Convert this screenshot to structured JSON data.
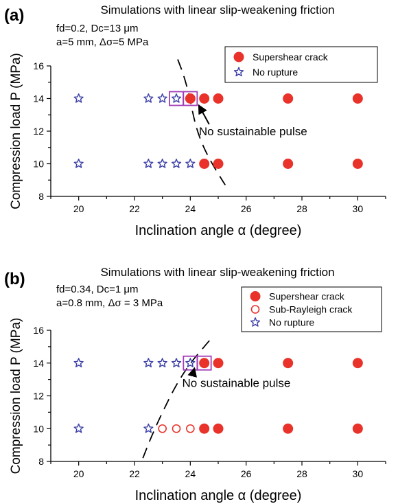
{
  "chart_data": [
    {
      "panel_label": "(a)",
      "type": "scatter",
      "title": "Simulations with linear slip-weakening friction",
      "params": [
        "fd=0.2, Dc=13 μm",
        "a=5 mm, Δσ=5 MPa"
      ],
      "xlabel": "Inclination angle α (degree)",
      "ylabel": "Compression load P (MPa)",
      "xlim": [
        19,
        31
      ],
      "ylim": [
        8,
        16
      ],
      "xticks": [
        20,
        22,
        24,
        26,
        28,
        30
      ],
      "yticks": [
        8,
        10,
        12,
        14,
        16
      ],
      "grid": false,
      "legend_position": "top-right",
      "series": [
        {
          "name": "Supershear crack",
          "marker": "filled-circle",
          "color": "#e8322a",
          "points": [
            [
              24,
              14
            ],
            [
              24.5,
              14
            ],
            [
              25,
              14
            ],
            [
              27.5,
              14
            ],
            [
              30,
              14
            ],
            [
              24.5,
              10
            ],
            [
              25,
              10
            ],
            [
              27.5,
              10
            ],
            [
              30,
              10
            ]
          ]
        },
        {
          "name": "No rupture",
          "marker": "star",
          "color": "#3b3fa6",
          "points": [
            [
              20,
              14
            ],
            [
              22.5,
              14
            ],
            [
              23,
              14
            ],
            [
              23.5,
              14
            ],
            [
              20,
              10
            ],
            [
              22.5,
              10
            ],
            [
              23,
              10
            ],
            [
              23.5,
              10
            ],
            [
              24,
              10
            ]
          ]
        }
      ],
      "highlight_boxes": [
        [
          23.5,
          14
        ],
        [
          24,
          14
        ]
      ],
      "boundary_curve": [
        [
          23.55,
          16.4
        ],
        [
          23.75,
          15.5
        ],
        [
          23.95,
          14.3
        ],
        [
          24.1,
          13.0
        ],
        [
          24.25,
          12.0
        ],
        [
          24.5,
          10.9
        ],
        [
          24.85,
          9.8
        ],
        [
          25.25,
          8.7
        ]
      ],
      "annotation": {
        "text": "No sustainable pulse",
        "x": 26.2,
        "y": 12,
        "arrow_to": [
          24.3,
          13.6
        ]
      }
    },
    {
      "panel_label": "(b)",
      "type": "scatter",
      "title": "Simulations with linear slip-weakening friction",
      "params": [
        "fd=0.34, Dc=1 μm",
        "a=0.8 mm, Δσ = 3 MPa"
      ],
      "xlabel": "Inclination angle α (degree)",
      "ylabel": "Compression load P (MPa)",
      "xlim": [
        19,
        31
      ],
      "ylim": [
        8,
        16
      ],
      "xticks": [
        20,
        22,
        24,
        26,
        28,
        30
      ],
      "yticks": [
        8,
        10,
        12,
        14,
        16
      ],
      "grid": false,
      "legend_position": "top-right",
      "series": [
        {
          "name": "Supershear crack",
          "marker": "filled-circle",
          "color": "#e8322a",
          "points": [
            [
              24.5,
              14
            ],
            [
              25,
              14
            ],
            [
              27.5,
              14
            ],
            [
              30,
              14
            ],
            [
              24.5,
              10
            ],
            [
              25,
              10
            ],
            [
              27.5,
              10
            ],
            [
              30,
              10
            ]
          ]
        },
        {
          "name": "Sub-Rayleigh crack",
          "marker": "open-circle",
          "color": "#e8322a",
          "points": [
            [
              23,
              10
            ],
            [
              23.5,
              10
            ],
            [
              24,
              10
            ]
          ]
        },
        {
          "name": "No rupture",
          "marker": "star",
          "color": "#3b3fa6",
          "points": [
            [
              20,
              14
            ],
            [
              22.5,
              14
            ],
            [
              23,
              14
            ],
            [
              23.5,
              14
            ],
            [
              24,
              14
            ],
            [
              20,
              10
            ],
            [
              22.5,
              10
            ]
          ]
        }
      ],
      "highlight_boxes": [
        [
          24,
          14
        ],
        [
          24.5,
          14
        ]
      ],
      "boundary_curve": [
        [
          22.3,
          8.2
        ],
        [
          22.6,
          9.5
        ],
        [
          23.0,
          11.0
        ],
        [
          23.5,
          12.7
        ],
        [
          24.0,
          14.0
        ],
        [
          24.4,
          14.8
        ],
        [
          24.8,
          15.6
        ]
      ],
      "annotation": {
        "text": "No sustainable pulse",
        "x": 25.6,
        "y": 12.8,
        "arrow_to": [
          24.15,
          13.7
        ]
      }
    }
  ],
  "colors": {
    "circle": "#e8322a",
    "star": "#3b3fa6",
    "box": "#a23bb8"
  }
}
